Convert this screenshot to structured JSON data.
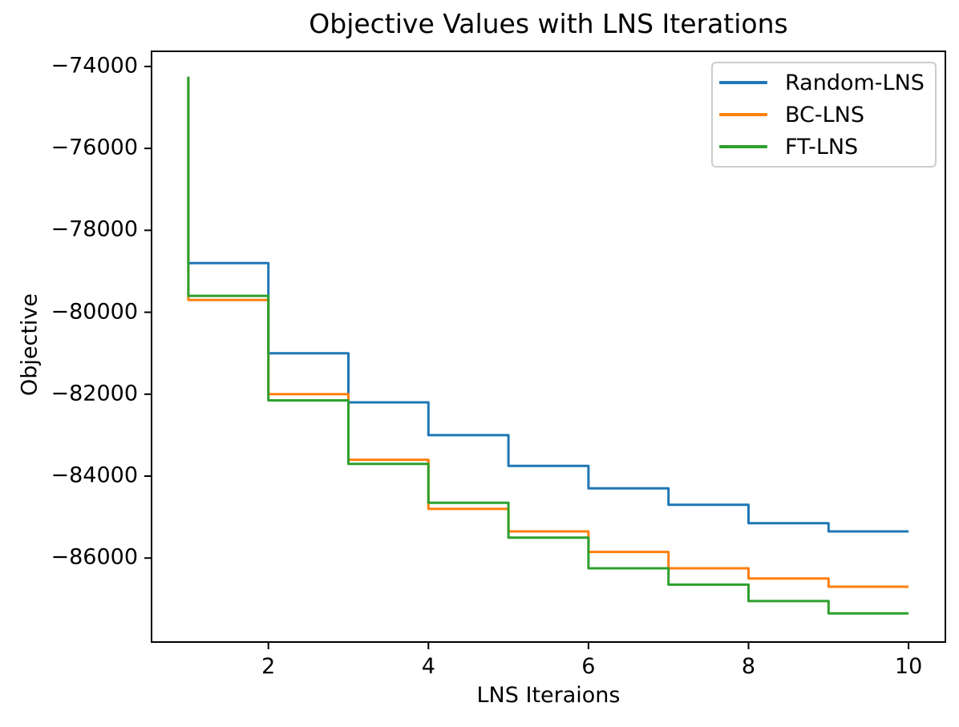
{
  "figure": {
    "title": "Objective Values with LNS Iterations",
    "xlabel": "LNS Iteraions",
    "ylabel": "Objective"
  },
  "chart_data": {
    "type": "line",
    "step_mode": "pre",
    "title": "Objective Values with LNS Iterations",
    "xlabel": "LNS Iteraions",
    "ylabel": "Objective",
    "grid": false,
    "legend_position": "upper-right",
    "xlim": [
      0.54,
      10.46
    ],
    "ylim": [
      -88050,
      -73630
    ],
    "x_ticks": {
      "values": [
        2,
        4,
        6,
        8,
        10
      ],
      "labels": [
        "2",
        "4",
        "6",
        "8",
        "10"
      ]
    },
    "y_ticks": {
      "values": [
        -74000,
        -76000,
        -78000,
        -80000,
        -82000,
        -84000,
        -86000
      ],
      "labels": [
        "−74000",
        "−76000",
        "−78000",
        "−80000",
        "−82000",
        "−84000",
        "−86000"
      ]
    },
    "x": [
      1,
      2,
      3,
      4,
      5,
      6,
      7,
      8,
      9,
      10
    ],
    "series": [
      {
        "name": "Random-LNS",
        "color": "#1f77b4",
        "y": [
          -74250,
          -78800,
          -81000,
          -82200,
          -83000,
          -83750,
          -84300,
          -84700,
          -85150,
          -85350
        ]
      },
      {
        "name": "BC-LNS",
        "color": "#ff7f0e",
        "y": [
          -74250,
          -79700,
          -82000,
          -83600,
          -84800,
          -85350,
          -85850,
          -86250,
          -86500,
          -86700
        ]
      },
      {
        "name": "FT-LNS",
        "color": "#2ca02c",
        "y": [
          -74250,
          -79600,
          -82150,
          -83700,
          -84650,
          -85500,
          -86250,
          -86650,
          -87050,
          -87350
        ]
      }
    ]
  }
}
